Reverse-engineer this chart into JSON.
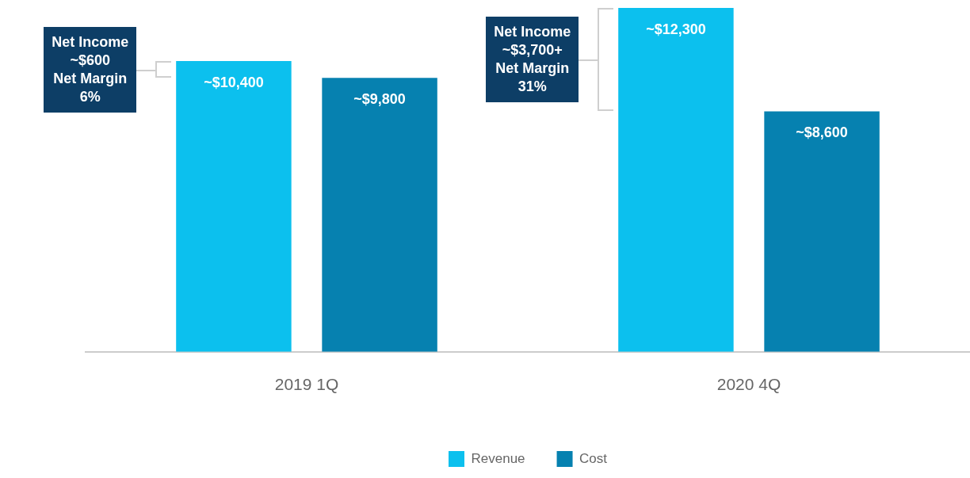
{
  "chart_data": {
    "type": "bar",
    "categories": [
      "2019 1Q",
      "2020 4Q"
    ],
    "series": [
      {
        "name": "Revenue",
        "color": "#0cc0ee",
        "values": [
          10400,
          12300
        ],
        "value_labels": [
          "~$10,400",
          "~$12,300"
        ]
      },
      {
        "name": "Cost",
        "color": "#0681b0",
        "values": [
          9800,
          8600
        ],
        "value_labels": [
          "~$9,800",
          "~$8,600"
        ]
      }
    ],
    "annotations": [
      "Net Income\n~$600\nNet Margin\n6%",
      "Net Income\n~$3,700+\nNet Margin\n31%"
    ],
    "legend": "bottom",
    "grid": false,
    "tick_labels": "x"
  }
}
